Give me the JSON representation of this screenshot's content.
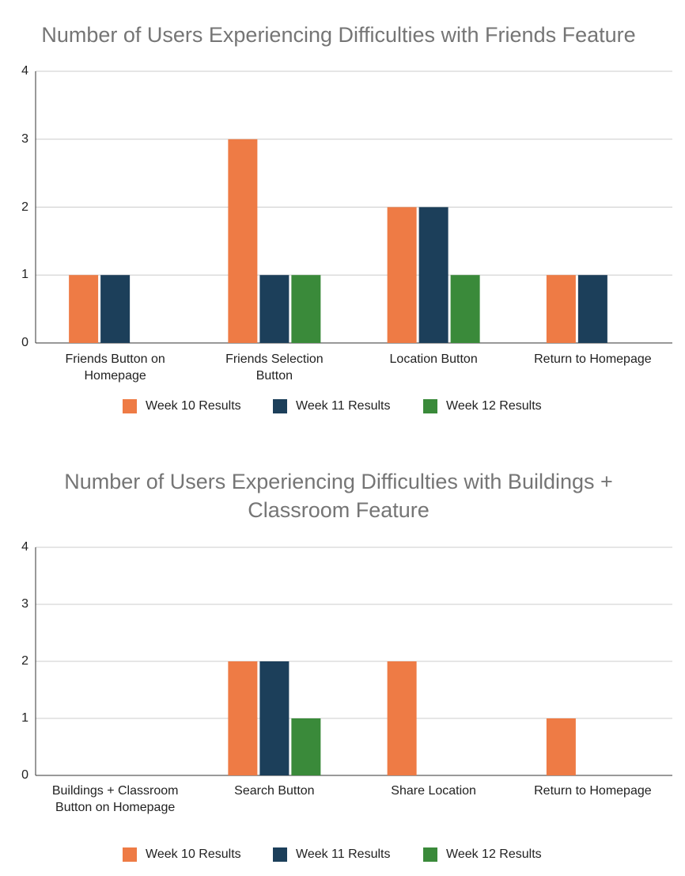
{
  "chart_data": [
    {
      "type": "bar",
      "title": "Number of Users Experiencing Difficulties with Friends Feature",
      "categories": [
        "Friends Button on Homepage",
        "Friends Selection Button",
        "Location Button",
        "Return to Homepage"
      ],
      "series": [
        {
          "name": "Week 10 Results",
          "color": "#ee7b45",
          "values": [
            1,
            3,
            2,
            1
          ]
        },
        {
          "name": "Week 11 Results",
          "color": "#1c3f5a",
          "values": [
            1,
            1,
            2,
            1
          ]
        },
        {
          "name": "Week 12 Results",
          "color": "#3a8a3a",
          "values": [
            0,
            1,
            1,
            0
          ]
        }
      ],
      "ylim": [
        0,
        4
      ],
      "yticks": [
        0,
        1,
        2,
        3,
        4
      ],
      "grid": true,
      "legend": "bottom"
    },
    {
      "type": "bar",
      "title": "Number of Users Experiencing Difficulties with Buildings + Classroom Feature",
      "categories": [
        "Buildings + Classroom Button on Homepage",
        "Search Button",
        "Share Location",
        "Return to Homepage"
      ],
      "series": [
        {
          "name": "Week 10 Results",
          "color": "#ee7b45",
          "values": [
            0,
            2,
            2,
            1
          ]
        },
        {
          "name": "Week 11 Results",
          "color": "#1c3f5a",
          "values": [
            0,
            2,
            0,
            0
          ]
        },
        {
          "name": "Week 12 Results",
          "color": "#3a8a3a",
          "values": [
            0,
            1,
            0,
            0
          ]
        }
      ],
      "ylim": [
        0,
        4
      ],
      "yticks": [
        0,
        1,
        2,
        3,
        4
      ],
      "grid": true,
      "legend": "bottom"
    }
  ]
}
